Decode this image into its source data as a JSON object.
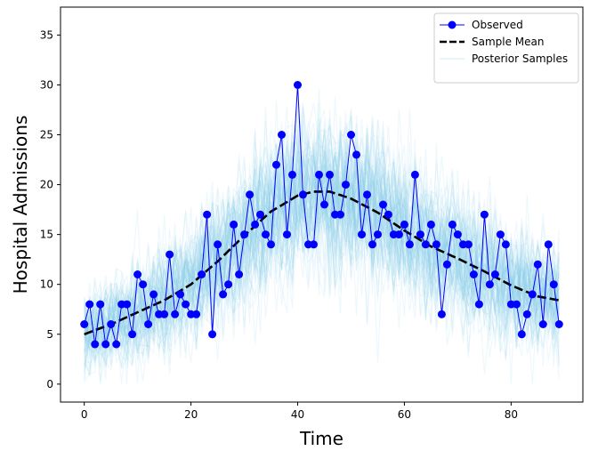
{
  "chart_data": {
    "type": "line",
    "title": "",
    "xlabel": "Time",
    "ylabel": "Hospital Admissions",
    "xlim": [
      -4.45,
      93.45
    ],
    "ylim": [
      -1.8,
      37.8
    ],
    "xticks": [
      0,
      20,
      40,
      60,
      80
    ],
    "yticks": [
      0,
      5,
      10,
      15,
      20,
      25,
      30,
      35
    ],
    "grid": false,
    "legend": "top-right",
    "series": [
      {
        "name": "Observed",
        "kind": "line-with-markers",
        "color": "#0000ff",
        "x": [
          0,
          1,
          2,
          3,
          4,
          5,
          6,
          7,
          8,
          9,
          10,
          11,
          12,
          13,
          14,
          15,
          16,
          17,
          18,
          19,
          20,
          21,
          22,
          23,
          24,
          25,
          26,
          27,
          28,
          29,
          30,
          31,
          32,
          33,
          34,
          35,
          36,
          37,
          38,
          39,
          40,
          41,
          42,
          43,
          44,
          45,
          46,
          47,
          48,
          49,
          50,
          51,
          52,
          53,
          54,
          55,
          56,
          57,
          58,
          59,
          60,
          61,
          62,
          63,
          64,
          65,
          66,
          67,
          68,
          69,
          70,
          71,
          72,
          73,
          74,
          75,
          76,
          77,
          78,
          79,
          80,
          81,
          82,
          83,
          84,
          85,
          86,
          87,
          88,
          89
        ],
        "values": [
          6,
          8,
          4,
          8,
          4,
          6,
          4,
          8,
          8,
          5,
          11,
          10,
          6,
          9,
          7,
          7,
          13,
          7,
          9,
          8,
          7,
          7,
          11,
          17,
          5,
          14,
          9,
          10,
          16,
          11,
          15,
          19,
          16,
          17,
          15,
          14,
          22,
          25,
          15,
          21,
          30,
          19,
          14,
          14,
          21,
          18,
          21,
          17,
          17,
          20,
          25,
          23,
          15,
          19,
          14,
          15,
          18,
          17,
          15,
          15,
          16,
          14,
          21,
          15,
          14,
          16,
          14,
          7,
          12,
          16,
          15,
          14,
          14,
          11,
          8,
          17,
          10,
          11,
          15,
          14,
          8,
          8,
          5,
          7,
          9,
          12,
          6,
          14,
          10,
          6
        ]
      },
      {
        "name": "Sample Mean",
        "kind": "dashed-line",
        "color": "#000000",
        "x": [
          0,
          5,
          10,
          15,
          20,
          25,
          30,
          35,
          40,
          43,
          46,
          50,
          55,
          60,
          65,
          70,
          75,
          80,
          85,
          89
        ],
        "values": [
          5.0,
          6.0,
          7.2,
          8.4,
          10.0,
          12.3,
          14.9,
          17.3,
          18.9,
          19.3,
          19.3,
          18.6,
          17.2,
          15.4,
          13.8,
          12.6,
          11.3,
          9.9,
          8.8,
          8.4
        ]
      },
      {
        "name": "Posterior Samples",
        "kind": "band",
        "color": "#87ceeb",
        "x": [
          0,
          5,
          10,
          15,
          20,
          25,
          30,
          35,
          40,
          45,
          50,
          55,
          60,
          65,
          70,
          75,
          80,
          85,
          89
        ],
        "values": [
          5.0,
          6.0,
          7.2,
          8.4,
          10.0,
          12.3,
          14.9,
          17.3,
          18.9,
          19.3,
          18.6,
          17.2,
          15.4,
          13.8,
          12.6,
          11.3,
          9.9,
          8.8,
          8.4
        ]
      }
    ]
  }
}
